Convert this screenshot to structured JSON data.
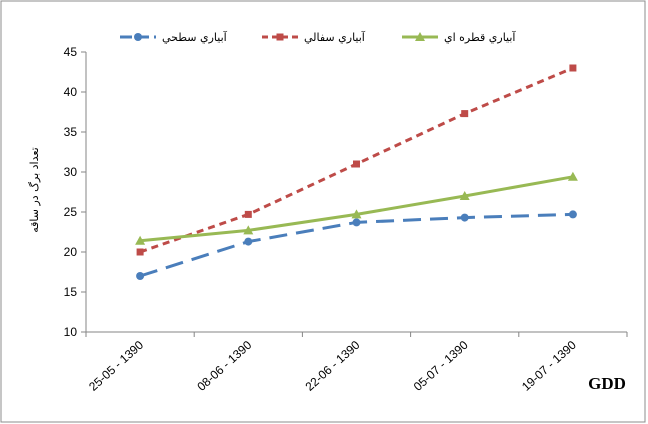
{
  "chart_data": {
    "type": "line",
    "categories": [
      "25-05 - 1390",
      "08-06 - 1390",
      "22-06 - 1390",
      "05-07 - 1390",
      "19-07 - 1390"
    ],
    "series": [
      {
        "name": "آبياري سطحي",
        "color": "#4A7EBB",
        "dash": "long-dash",
        "marker": "circle",
        "values": [
          17.0,
          21.3,
          23.7,
          24.3,
          24.7
        ]
      },
      {
        "name": "آبياري سفالي",
        "color": "#BE4B48",
        "dash": "short-dash",
        "marker": "square",
        "values": [
          20.0,
          24.7,
          31.0,
          37.3,
          43.0
        ]
      },
      {
        "name": "آبياري قطره اي",
        "color": "#98B954",
        "dash": "solid",
        "marker": "triangle",
        "values": [
          21.4,
          22.7,
          24.7,
          27.0,
          29.4
        ]
      }
    ],
    "ylabel": "تعداد برگ در ساقه",
    "xlabel": "GDD",
    "ylim": [
      10,
      45
    ],
    "yticks": [
      10,
      15,
      20,
      25,
      30,
      35,
      40,
      45
    ],
    "grid": false,
    "legend_position": "top"
  }
}
